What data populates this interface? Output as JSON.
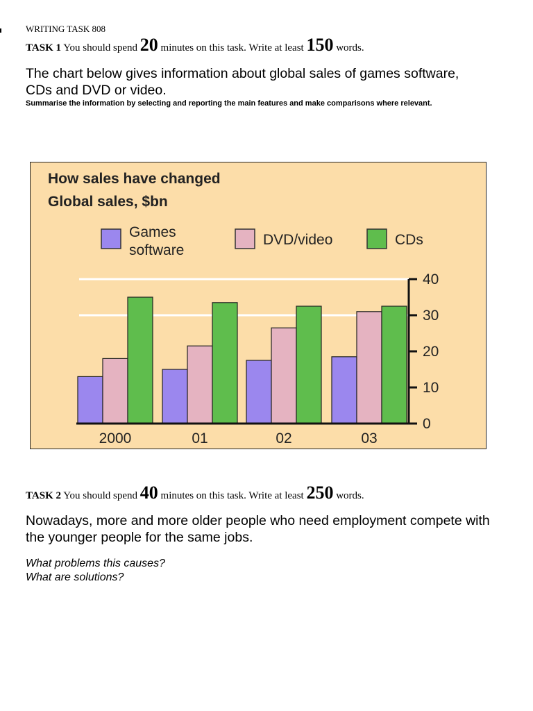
{
  "header": {
    "title": "WRITING TASK 808"
  },
  "task1": {
    "label": "TASK 1",
    "pre": "You should spend",
    "minutes": "20",
    "mid": "minutes on this task. Write at least",
    "words": "150",
    "post": "words.",
    "prompt": "The chart below gives information about global sales of games software, CDs and DVD or video.",
    "instruction": "Summarise the information by selecting and reporting the main features and make comparisons where relevant."
  },
  "task2": {
    "label": "TASK 2",
    "pre": "You should spend",
    "minutes": "40",
    "mid": "minutes on this task. Write at least",
    "words": "250",
    "post": "words.",
    "prompt": "Nowadays, more and more older people who need employment compete with the younger people for the same jobs.",
    "question1": "What problems this causes?",
    "question2": "What are solutions?"
  },
  "chart_data": {
    "type": "bar",
    "title": "How sales have changed",
    "subtitle": "Global sales, $bn",
    "xlabel": "",
    "ylabel": "",
    "categories": [
      "2000",
      "01",
      "02",
      "03"
    ],
    "series": [
      {
        "name": "Games software",
        "legend_lines": [
          "Games",
          "software"
        ],
        "color": "#9b87ee",
        "values": [
          13,
          15,
          17.5,
          18.5
        ]
      },
      {
        "name": "DVD/video",
        "legend_lines": [
          "DVD/video"
        ],
        "color": "#e5b3c1",
        "values": [
          18,
          21.5,
          26.5,
          31
        ]
      },
      {
        "name": "CDs",
        "legend_lines": [
          "CDs"
        ],
        "color": "#5fbd4d",
        "values": [
          35,
          33.5,
          32.5,
          32.5
        ]
      }
    ],
    "ylim": [
      0,
      40
    ],
    "yticks": [
      0,
      10,
      20,
      30,
      40
    ],
    "gridlines": [
      30,
      40
    ],
    "grid_color": "#ffffff",
    "background": "#fcdda9",
    "y_axis_side": "right",
    "legend_position": "top"
  }
}
